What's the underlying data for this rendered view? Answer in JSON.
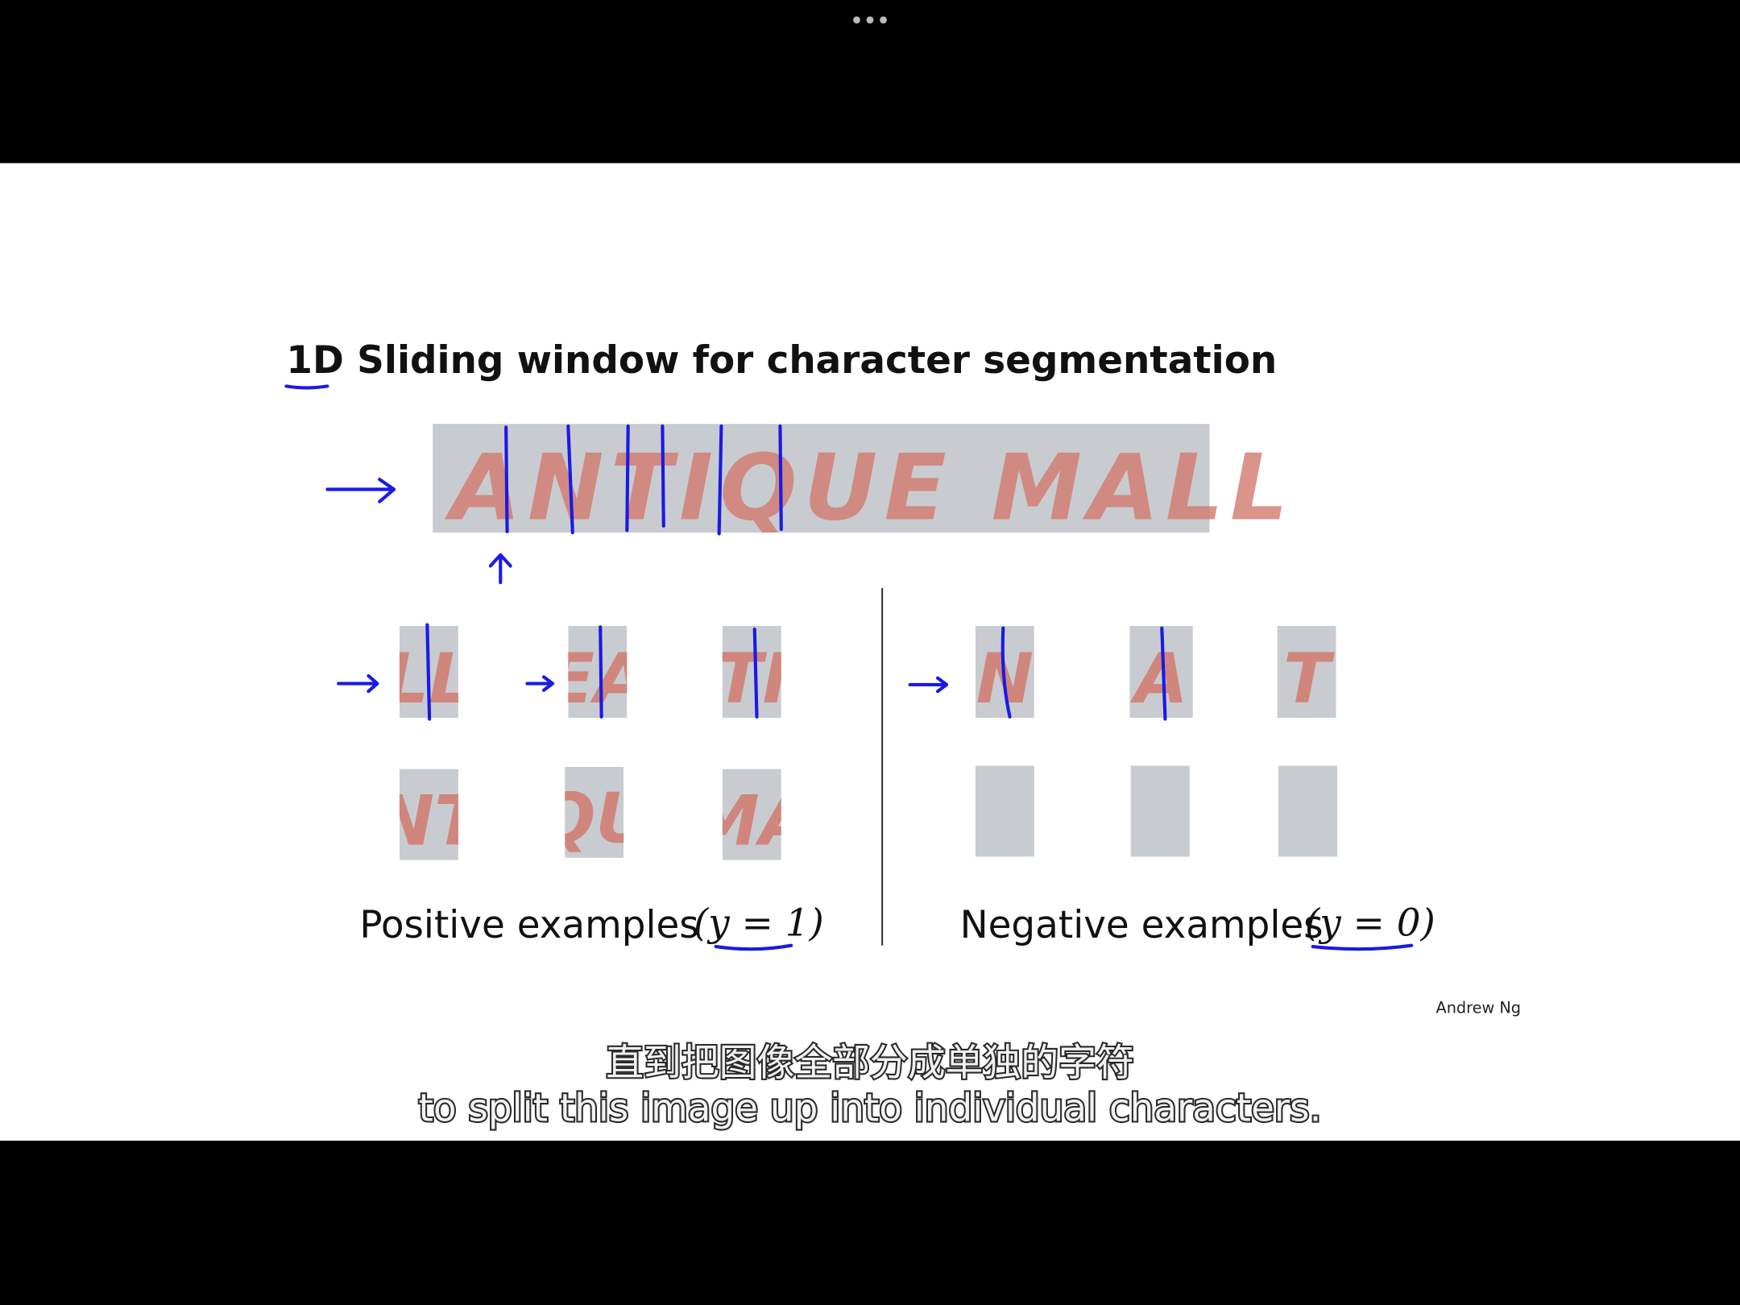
{
  "slide": {
    "title": "1D Sliding window for character segmentation",
    "banner_text": "ANTIQUE MALL",
    "positive": {
      "label": "Positive examples",
      "formula": "(y = 1)",
      "patches": [
        "LL",
        "EA",
        "TI",
        "NT",
        "QU",
        "MA"
      ]
    },
    "negative": {
      "label": "Negative examples",
      "formula": "(y = 0)",
      "patches": [
        "N",
        "A",
        "T"
      ]
    },
    "credit": "Andrew Ng"
  },
  "subtitles": {
    "zh": "直到把图像全部分成单独的字符",
    "en": "to split this image up into individual characters."
  }
}
